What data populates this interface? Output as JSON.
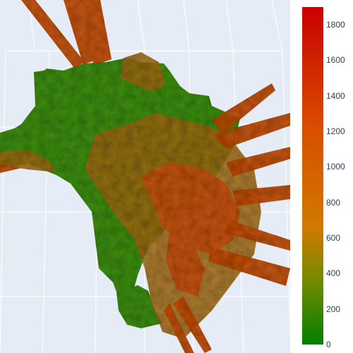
{
  "chart_data": {
    "type": "surface",
    "title": "",
    "colorscale": [
      [
        0,
        "#008000"
      ],
      [
        0.2,
        "#7a8a00"
      ],
      [
        0.35,
        "#d17a00"
      ],
      [
        0.65,
        "#d84c00"
      ],
      [
        1,
        "#c80000"
      ]
    ],
    "zrange": [
      0,
      1900
    ],
    "colorbar": {
      "tickvals": [
        0,
        200,
        400,
        600,
        800,
        1000,
        1200,
        1400,
        1600,
        1800
      ],
      "ticktext": [
        "0",
        "200",
        "400",
        "600",
        "800",
        "1000",
        "1200",
        "1400",
        "1600",
        "1800"
      ]
    },
    "scene": {
      "background": "#e5ecf6",
      "gridcolor": "#ffffff",
      "grid": true
    }
  }
}
